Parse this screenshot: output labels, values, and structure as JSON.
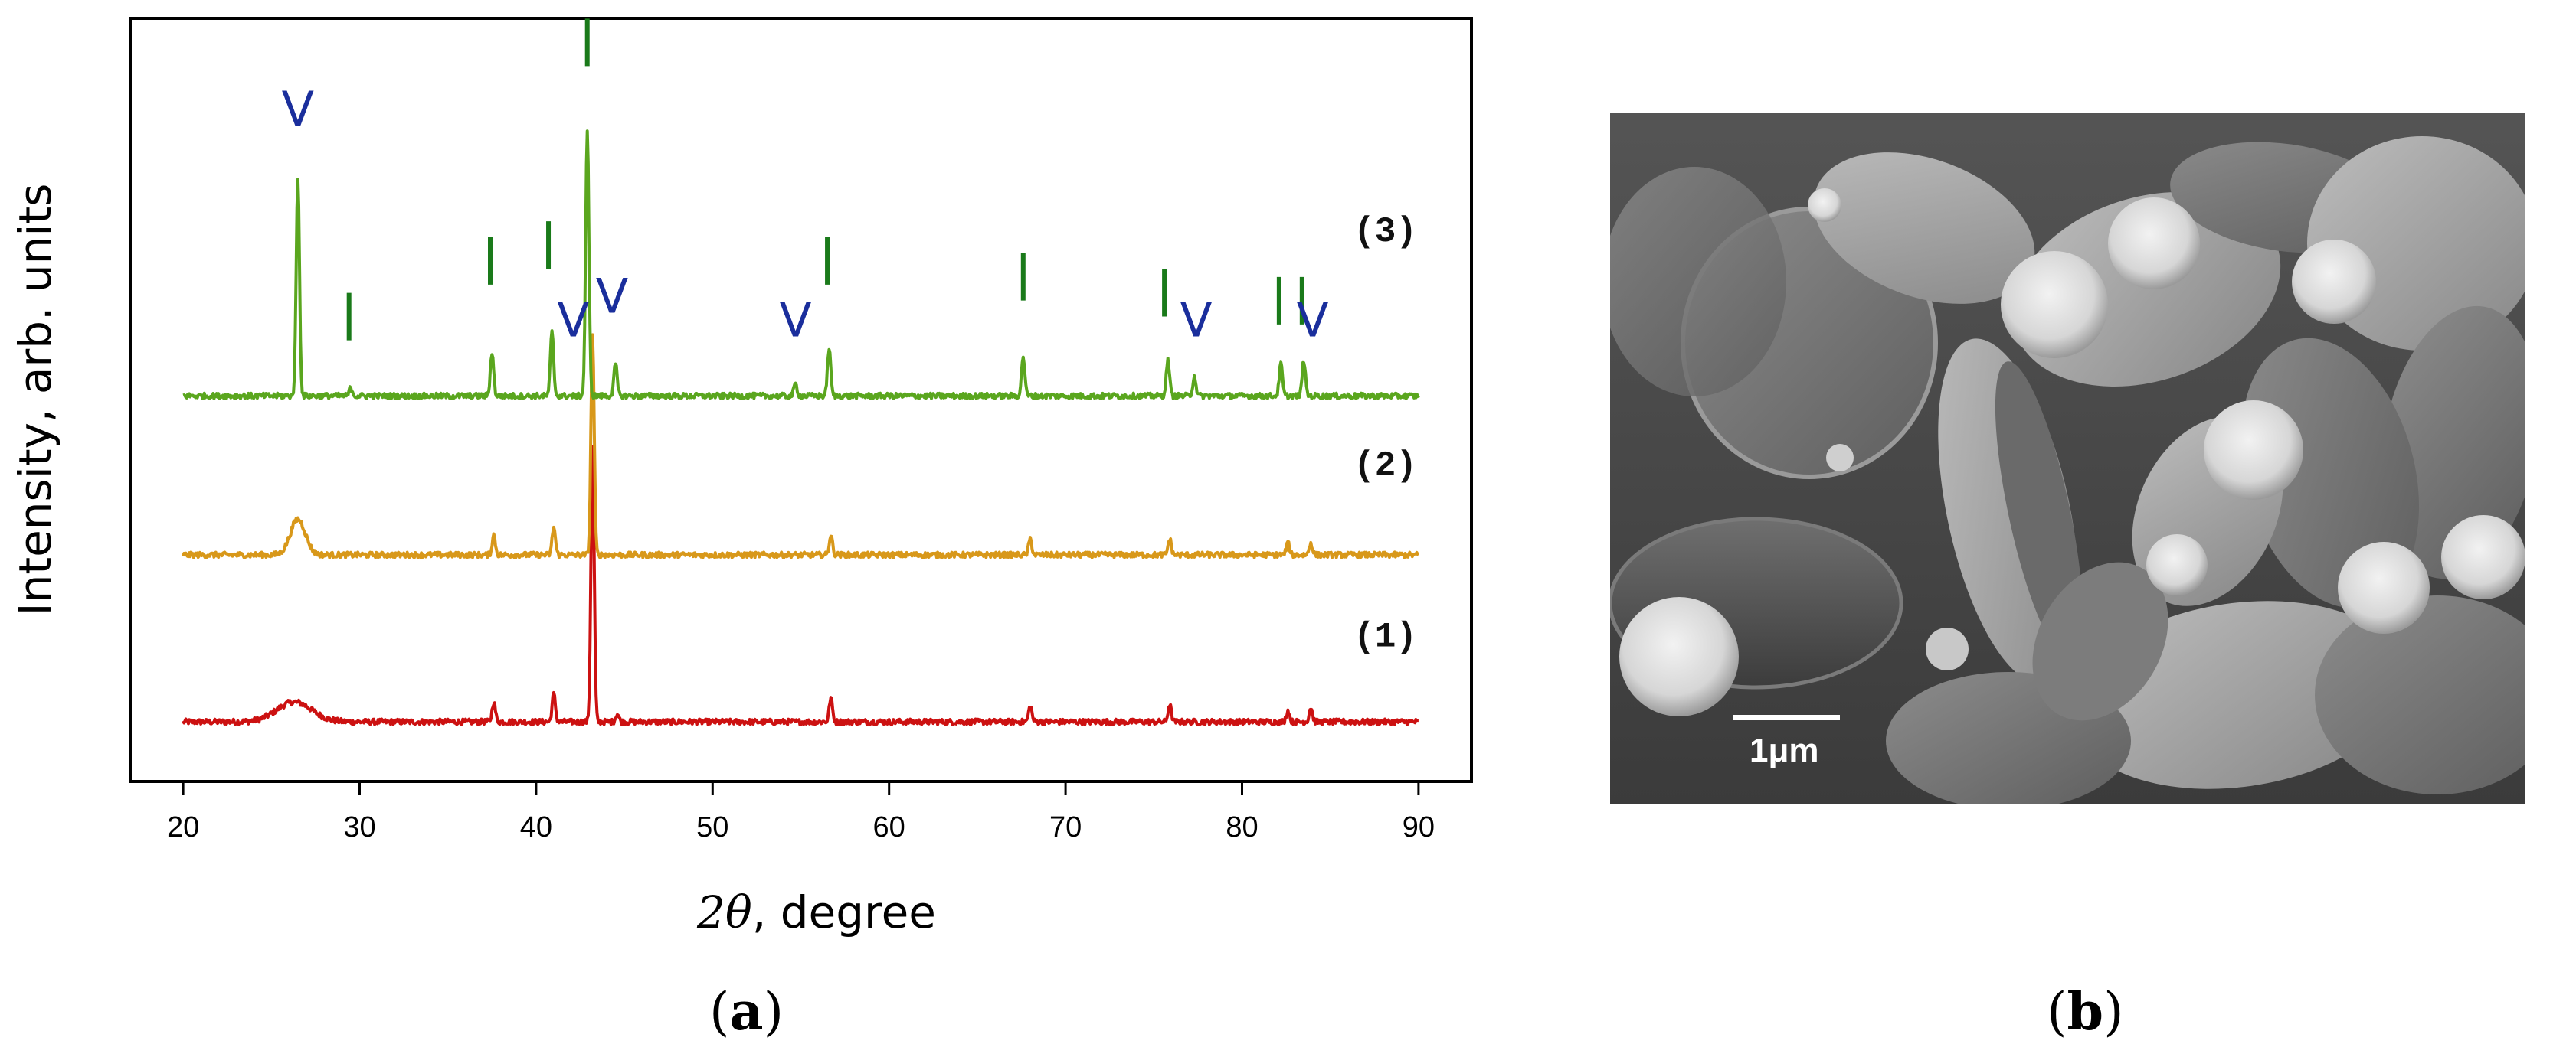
{
  "chart_data": {
    "type": "line",
    "title": "",
    "xlabel_symbol": "2θ",
    "xlabel_rest": ", degree",
    "ylabel": "Intensity, arb. units",
    "xlim": [
      17,
      93
    ],
    "xticks": [
      20,
      30,
      40,
      50,
      60,
      70,
      80,
      90
    ],
    "grid": false,
    "legend": "none",
    "series": [
      {
        "label": "(1)",
        "color": "#cc1111",
        "baseline": 0.75,
        "broad": [
          {
            "x": 26.3,
            "h": 0.25,
            "w": 1.4
          }
        ],
        "peaks": [
          {
            "x": 37.6,
            "h": 0.25
          },
          {
            "x": 41.0,
            "h": 0.35
          },
          {
            "x": 43.2,
            "h": 3.45
          },
          {
            "x": 44.6,
            "h": 0.1
          },
          {
            "x": 56.7,
            "h": 0.3
          },
          {
            "x": 68.0,
            "h": 0.2
          },
          {
            "x": 75.9,
            "h": 0.22
          },
          {
            "x": 82.6,
            "h": 0.14
          },
          {
            "x": 83.9,
            "h": 0.18
          }
        ]
      },
      {
        "label": "(2)",
        "color": "#d8981a",
        "baseline": 2.85,
        "broad": [
          {
            "x": 26.5,
            "h": 0.45,
            "w": 0.6
          }
        ],
        "peaks": [
          {
            "x": 37.6,
            "h": 0.25
          },
          {
            "x": 41.0,
            "h": 0.35
          },
          {
            "x": 43.2,
            "h": 2.75
          },
          {
            "x": 56.7,
            "h": 0.25
          },
          {
            "x": 68.0,
            "h": 0.2
          },
          {
            "x": 75.9,
            "h": 0.2
          },
          {
            "x": 82.6,
            "h": 0.15
          },
          {
            "x": 83.9,
            "h": 0.15
          }
        ]
      },
      {
        "label": "(3)",
        "color": "#5aa61e",
        "baseline": 4.85,
        "broad": [],
        "peaks": [
          {
            "x": 26.5,
            "h": 2.75
          },
          {
            "x": 29.5,
            "h": 0.1
          },
          {
            "x": 37.5,
            "h": 0.55
          },
          {
            "x": 40.9,
            "h": 0.8
          },
          {
            "x": 42.9,
            "h": 3.35
          },
          {
            "x": 44.5,
            "h": 0.4
          },
          {
            "x": 54.7,
            "h": 0.15
          },
          {
            "x": 56.6,
            "h": 0.6
          },
          {
            "x": 67.6,
            "h": 0.5
          },
          {
            "x": 75.8,
            "h": 0.45
          },
          {
            "x": 77.3,
            "h": 0.25
          },
          {
            "x": 82.2,
            "h": 0.4
          },
          {
            "x": 83.5,
            "h": 0.45
          }
        ]
      }
    ],
    "annotations": {
      "bar_color": "#1a7a1a",
      "v_color": "#1a2e9c",
      "v_text": "V",
      "bars": [
        {
          "x": 29.4,
          "y": 5.55
        },
        {
          "x": 37.4,
          "y": 6.25
        },
        {
          "x": 40.7,
          "y": 6.45
        },
        {
          "x": 42.9,
          "y": 9.0
        },
        {
          "x": 56.5,
          "y": 6.25
        },
        {
          "x": 67.6,
          "y": 6.05
        },
        {
          "x": 75.6,
          "y": 5.85
        },
        {
          "x": 82.1,
          "y": 5.75
        },
        {
          "x": 83.4,
          "y": 5.75
        }
      ],
      "v_marks": [
        {
          "x": 26.5,
          "y": 8.25
        },
        {
          "x": 42.1,
          "y": 5.6
        },
        {
          "x": 44.3,
          "y": 5.9
        },
        {
          "x": 54.7,
          "y": 5.6
        },
        {
          "x": 77.4,
          "y": 5.6
        },
        {
          "x": 84.0,
          "y": 5.6
        }
      ]
    }
  },
  "panels": {
    "a_label_open": "(",
    "a_label_letter": "a",
    "a_label_close": ")",
    "b_label_open": "(",
    "b_label_letter": "b",
    "b_label_close": ")"
  },
  "sem_image": {
    "scale_bar_label": "1μm"
  }
}
